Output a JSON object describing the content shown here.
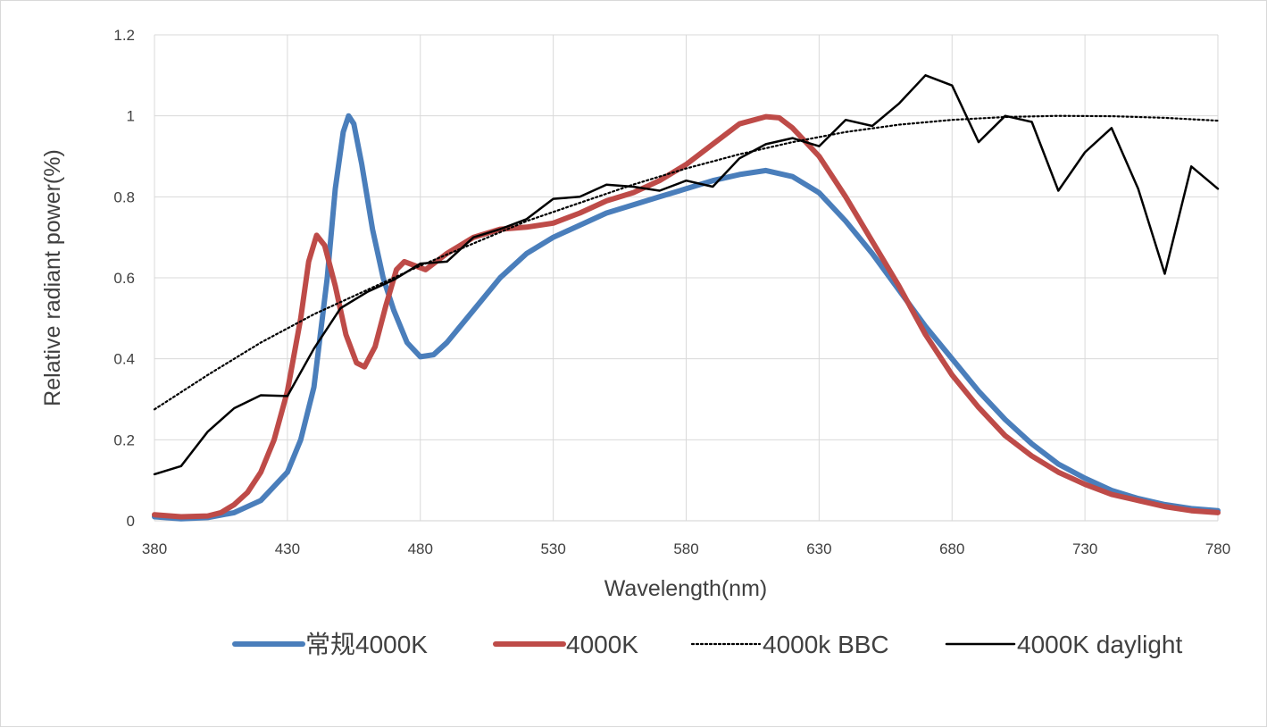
{
  "chart_data": {
    "type": "line",
    "title": "",
    "xlabel": "Wavelength(nm)",
    "ylabel": "Relative radiant power(%)",
    "xlim": [
      380,
      780
    ],
    "ylim": [
      0,
      1.2
    ],
    "x_ticks": [
      "380",
      "430",
      "480",
      "530",
      "580",
      "630",
      "680",
      "730",
      "780"
    ],
    "y_ticks": [
      "0",
      "0.2",
      "0.4",
      "0.6",
      "0.8",
      "1",
      "1.2"
    ],
    "grid": true,
    "legend_position": "bottom",
    "series": [
      {
        "name": "常规4000K",
        "color": "#4a7ebb",
        "style": "solid-thick",
        "points": [
          [
            380,
            0.01
          ],
          [
            390,
            0.005
          ],
          [
            400,
            0.008
          ],
          [
            410,
            0.02
          ],
          [
            420,
            0.05
          ],
          [
            430,
            0.12
          ],
          [
            435,
            0.2
          ],
          [
            440,
            0.33
          ],
          [
            445,
            0.6
          ],
          [
            448,
            0.82
          ],
          [
            451,
            0.96
          ],
          [
            453,
            1.0
          ],
          [
            455,
            0.98
          ],
          [
            458,
            0.88
          ],
          [
            462,
            0.72
          ],
          [
            466,
            0.6
          ],
          [
            470,
            0.52
          ],
          [
            475,
            0.44
          ],
          [
            480,
            0.405
          ],
          [
            485,
            0.41
          ],
          [
            490,
            0.44
          ],
          [
            500,
            0.52
          ],
          [
            510,
            0.6
          ],
          [
            520,
            0.66
          ],
          [
            530,
            0.7
          ],
          [
            540,
            0.73
          ],
          [
            550,
            0.76
          ],
          [
            560,
            0.78
          ],
          [
            570,
            0.8
          ],
          [
            580,
            0.82
          ],
          [
            590,
            0.84
          ],
          [
            600,
            0.855
          ],
          [
            610,
            0.865
          ],
          [
            620,
            0.85
          ],
          [
            630,
            0.81
          ],
          [
            640,
            0.74
          ],
          [
            650,
            0.66
          ],
          [
            660,
            0.57
          ],
          [
            670,
            0.48
          ],
          [
            680,
            0.4
          ],
          [
            690,
            0.32
          ],
          [
            700,
            0.25
          ],
          [
            710,
            0.19
          ],
          [
            720,
            0.14
          ],
          [
            730,
            0.105
          ],
          [
            740,
            0.075
          ],
          [
            750,
            0.055
          ],
          [
            760,
            0.04
          ],
          [
            770,
            0.03
          ],
          [
            780,
            0.025
          ]
        ]
      },
      {
        "name": "4000K",
        "color": "#be4b48",
        "style": "solid-thick",
        "points": [
          [
            380,
            0.015
          ],
          [
            390,
            0.01
          ],
          [
            400,
            0.012
          ],
          [
            405,
            0.02
          ],
          [
            410,
            0.04
          ],
          [
            415,
            0.07
          ],
          [
            420,
            0.12
          ],
          [
            425,
            0.2
          ],
          [
            430,
            0.32
          ],
          [
            435,
            0.5
          ],
          [
            438,
            0.64
          ],
          [
            441,
            0.705
          ],
          [
            444,
            0.68
          ],
          [
            448,
            0.58
          ],
          [
            452,
            0.46
          ],
          [
            456,
            0.39
          ],
          [
            459,
            0.38
          ],
          [
            463,
            0.43
          ],
          [
            467,
            0.53
          ],
          [
            471,
            0.62
          ],
          [
            474,
            0.64
          ],
          [
            478,
            0.63
          ],
          [
            482,
            0.62
          ],
          [
            486,
            0.64
          ],
          [
            490,
            0.66
          ],
          [
            500,
            0.7
          ],
          [
            510,
            0.72
          ],
          [
            520,
            0.725
          ],
          [
            530,
            0.735
          ],
          [
            540,
            0.76
          ],
          [
            550,
            0.79
          ],
          [
            560,
            0.81
          ],
          [
            570,
            0.84
          ],
          [
            580,
            0.88
          ],
          [
            590,
            0.93
          ],
          [
            600,
            0.98
          ],
          [
            610,
            0.998
          ],
          [
            615,
            0.995
          ],
          [
            620,
            0.97
          ],
          [
            630,
            0.9
          ],
          [
            640,
            0.8
          ],
          [
            650,
            0.69
          ],
          [
            660,
            0.58
          ],
          [
            670,
            0.46
          ],
          [
            680,
            0.36
          ],
          [
            690,
            0.28
          ],
          [
            700,
            0.21
          ],
          [
            710,
            0.16
          ],
          [
            720,
            0.12
          ],
          [
            730,
            0.09
          ],
          [
            740,
            0.065
          ],
          [
            750,
            0.05
          ],
          [
            760,
            0.035
          ],
          [
            770,
            0.025
          ],
          [
            780,
            0.02
          ]
        ]
      },
      {
        "name": "4000k BBC",
        "color": "#000000",
        "style": "dotted",
        "points": [
          [
            380,
            0.275
          ],
          [
            400,
            0.36
          ],
          [
            420,
            0.44
          ],
          [
            440,
            0.51
          ],
          [
            460,
            0.57
          ],
          [
            480,
            0.63
          ],
          [
            500,
            0.685
          ],
          [
            520,
            0.74
          ],
          [
            540,
            0.785
          ],
          [
            560,
            0.83
          ],
          [
            580,
            0.87
          ],
          [
            600,
            0.905
          ],
          [
            620,
            0.935
          ],
          [
            640,
            0.96
          ],
          [
            660,
            0.978
          ],
          [
            680,
            0.99
          ],
          [
            700,
            0.997
          ],
          [
            720,
            1.0
          ],
          [
            740,
            0.999
          ],
          [
            760,
            0.995
          ],
          [
            780,
            0.988
          ]
        ]
      },
      {
        "name": "4000K daylight",
        "color": "#000000",
        "style": "solid-thin",
        "points": [
          [
            380,
            0.115
          ],
          [
            390,
            0.135
          ],
          [
            400,
            0.22
          ],
          [
            410,
            0.278
          ],
          [
            420,
            0.31
          ],
          [
            430,
            0.308
          ],
          [
            440,
            0.425
          ],
          [
            450,
            0.525
          ],
          [
            460,
            0.565
          ],
          [
            470,
            0.595
          ],
          [
            480,
            0.635
          ],
          [
            490,
            0.64
          ],
          [
            500,
            0.7
          ],
          [
            510,
            0.72
          ],
          [
            520,
            0.745
          ],
          [
            530,
            0.795
          ],
          [
            540,
            0.8
          ],
          [
            550,
            0.83
          ],
          [
            560,
            0.825
          ],
          [
            570,
            0.815
          ],
          [
            580,
            0.84
          ],
          [
            590,
            0.825
          ],
          [
            600,
            0.895
          ],
          [
            610,
            0.93
          ],
          [
            620,
            0.945
          ],
          [
            630,
            0.925
          ],
          [
            640,
            0.99
          ],
          [
            650,
            0.975
          ],
          [
            660,
            1.03
          ],
          [
            670,
            1.1
          ],
          [
            680,
            1.075
          ],
          [
            690,
            0.935
          ],
          [
            700,
            1.0
          ],
          [
            710,
            0.985
          ],
          [
            720,
            0.815
          ],
          [
            730,
            0.91
          ],
          [
            740,
            0.97
          ],
          [
            750,
            0.82
          ],
          [
            760,
            0.61
          ],
          [
            770,
            0.875
          ],
          [
            780,
            0.82
          ]
        ]
      }
    ]
  }
}
